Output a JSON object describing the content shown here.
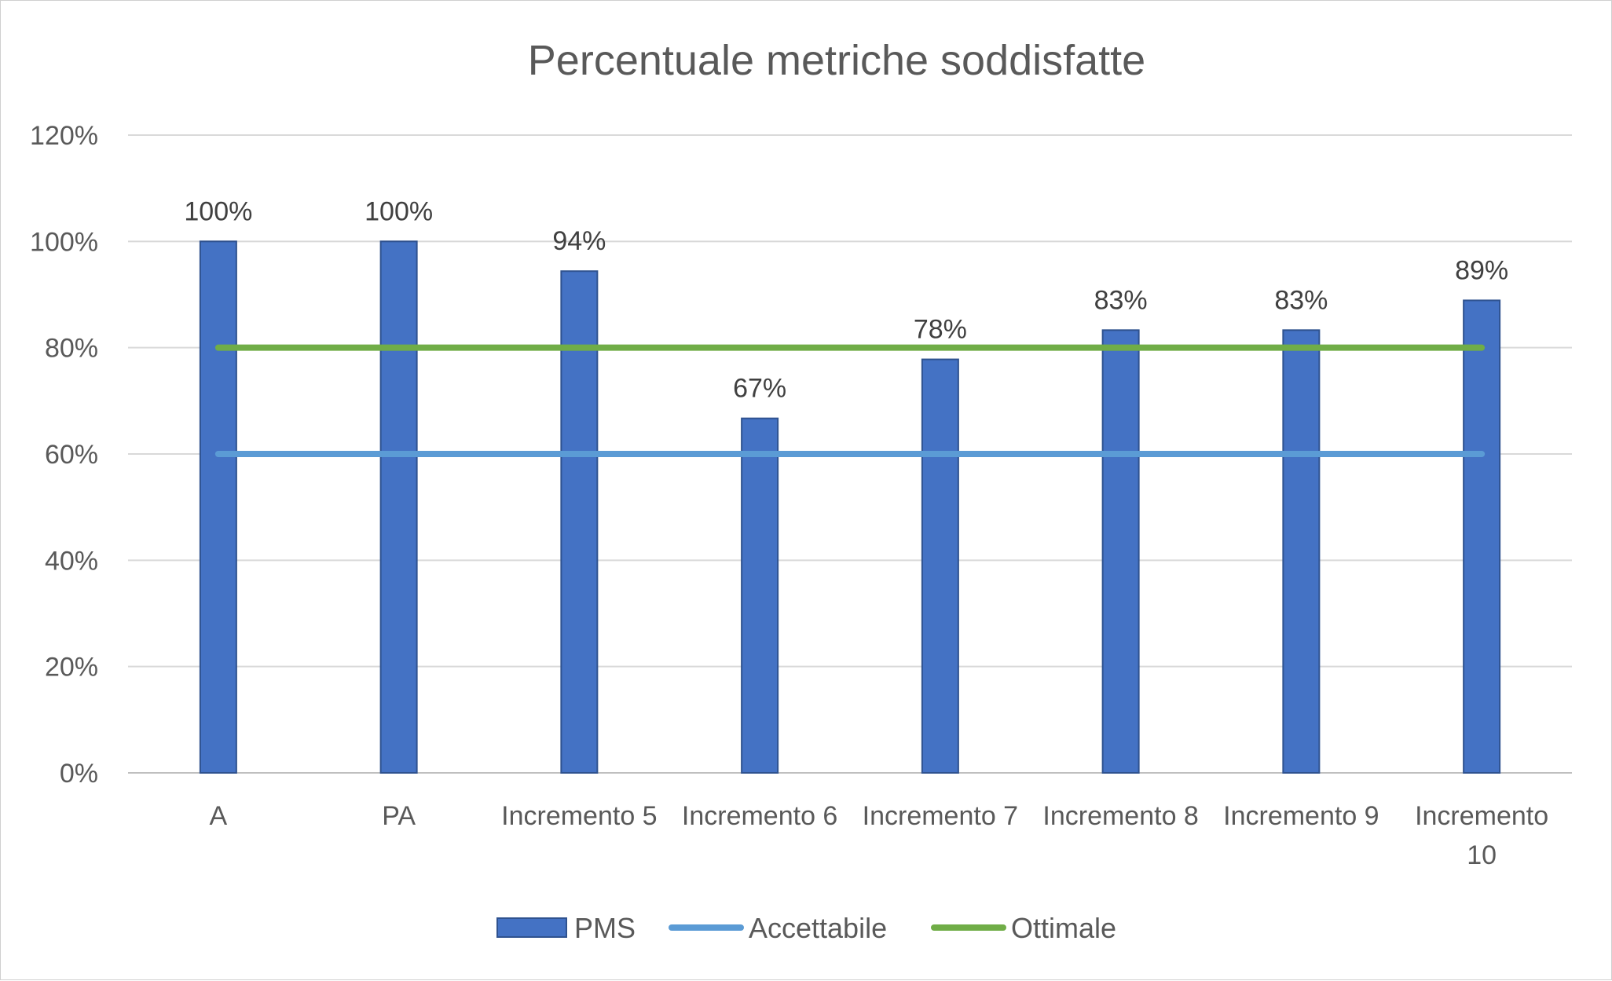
{
  "chart_data": {
    "type": "bar",
    "title": "Percentuale metriche soddisfatte",
    "categories": [
      "A",
      "PA",
      "Incremento 5",
      "Incremento 6",
      "Incremento 7",
      "Incremento 8",
      "Incremento 9",
      "Incremento 10"
    ],
    "series": [
      {
        "name": "PMS",
        "type": "bar",
        "color": "#4472C4",
        "values": [
          1.0,
          1.0,
          0.944,
          0.667,
          0.778,
          0.833,
          0.833,
          0.889
        ],
        "data_labels": [
          "100%",
          "100%",
          "94%",
          "67%",
          "78%",
          "83%",
          "83%",
          "89%"
        ]
      },
      {
        "name": "Accettabile",
        "type": "line",
        "color": "#5B9BD5",
        "values": [
          0.6,
          0.6,
          0.6,
          0.6,
          0.6,
          0.6,
          0.6,
          0.6
        ]
      },
      {
        "name": "Ottimale",
        "type": "line",
        "color": "#70AD47",
        "values": [
          0.8,
          0.8,
          0.8,
          0.8,
          0.8,
          0.8,
          0.8,
          0.8
        ]
      }
    ],
    "ylim": [
      0,
      1.2
    ],
    "yticks": [
      0,
      0.2,
      0.4,
      0.6,
      0.8,
      1.0,
      1.2
    ],
    "ytick_labels": [
      "0%",
      "20%",
      "40%",
      "60%",
      "80%",
      "100%",
      "120%"
    ],
    "xlabel": "",
    "ylabel": "",
    "grid": true,
    "legend": "bottom"
  }
}
